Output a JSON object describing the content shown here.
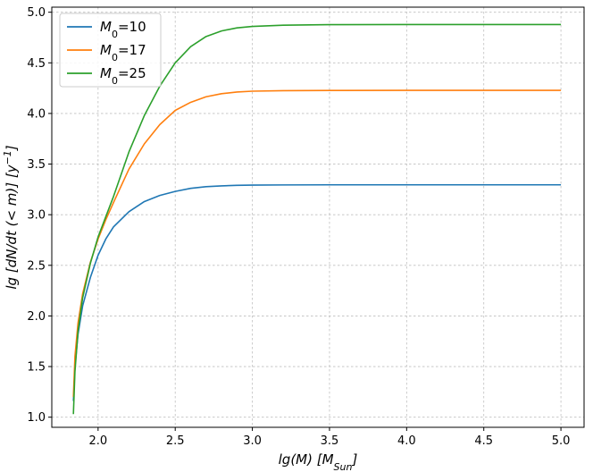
{
  "chart_data": {
    "type": "line",
    "title": "",
    "xlabel": "lg(M)  [M_Sun]",
    "ylabel": "lg [dN/dt (< m)]  [y^-1]",
    "xlim": [
      1.7,
      5.15
    ],
    "ylim": [
      0.9,
      5.05
    ],
    "xticks": [
      "2.0",
      "2.5",
      "3.0",
      "3.5",
      "4.0",
      "4.5",
      "5.0"
    ],
    "yticks": [
      "1.0",
      "1.5",
      "2.0",
      "2.5",
      "3.0",
      "3.5",
      "4.0",
      "4.5",
      "5.0"
    ],
    "grid": true,
    "legend_position": "top-left",
    "series": [
      {
        "name": "M_0=10",
        "legend_label": {
          "base": "M",
          "sub": "0",
          "rest": "=10"
        },
        "color": "#1f77b4",
        "x": [
          1.84,
          1.85,
          1.87,
          1.9,
          1.95,
          2.0,
          2.05,
          2.1,
          2.2,
          2.3,
          2.4,
          2.5,
          2.6,
          2.7,
          2.8,
          2.9,
          3.0,
          3.2,
          3.5,
          4.0,
          4.5,
          5.0
        ],
        "y": [
          1.16,
          1.5,
          1.82,
          2.1,
          2.38,
          2.6,
          2.76,
          2.88,
          3.03,
          3.13,
          3.19,
          3.23,
          3.26,
          3.277,
          3.285,
          3.29,
          3.292,
          3.294,
          3.295,
          3.295,
          3.295,
          3.295
        ]
      },
      {
        "name": "M_0=17",
        "legend_label": {
          "base": "M",
          "sub": "0",
          "rest": "=17"
        },
        "color": "#ff7f0e",
        "x": [
          1.84,
          1.85,
          1.87,
          1.9,
          1.95,
          2.0,
          2.05,
          2.1,
          2.2,
          2.3,
          2.4,
          2.5,
          2.6,
          2.7,
          2.8,
          2.9,
          3.0,
          3.2,
          3.5,
          4.0,
          4.5,
          5.0
        ],
        "y": [
          1.2,
          1.6,
          1.93,
          2.22,
          2.53,
          2.76,
          2.95,
          3.12,
          3.45,
          3.7,
          3.89,
          4.03,
          4.11,
          4.165,
          4.195,
          4.212,
          4.22,
          4.225,
          4.227,
          4.228,
          4.228,
          4.228
        ]
      },
      {
        "name": "M_0=25",
        "legend_label": {
          "base": "M",
          "sub": "0",
          "rest": "=25"
        },
        "color": "#2ca02c",
        "x": [
          1.84,
          1.85,
          1.87,
          1.9,
          1.95,
          2.0,
          2.05,
          2.1,
          2.2,
          2.3,
          2.4,
          2.5,
          2.6,
          2.7,
          2.8,
          2.9,
          3.0,
          3.2,
          3.5,
          4.0,
          4.5,
          5.0
        ],
        "y": [
          1.03,
          1.45,
          1.85,
          2.18,
          2.52,
          2.78,
          2.98,
          3.18,
          3.62,
          3.98,
          4.27,
          4.5,
          4.66,
          4.76,
          4.815,
          4.845,
          4.86,
          4.872,
          4.877,
          4.878,
          4.878,
          4.878
        ]
      }
    ]
  }
}
